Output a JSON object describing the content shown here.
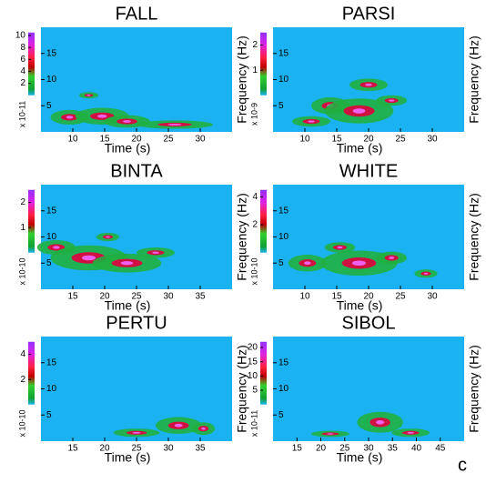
{
  "figure_label": "c",
  "chart_data": [
    {
      "type": "spectrogram",
      "title": "FALL",
      "xlabel": "Time (s)",
      "ylabel": "Frequency (Hz)",
      "xlim": [
        5,
        35
      ],
      "xticks": [
        10,
        15,
        20,
        25,
        30
      ],
      "ylim": [
        0,
        20
      ],
      "yticks": [
        5,
        10,
        15
      ],
      "colorbar": {
        "lim": [
          0,
          10.5
        ],
        "ticks": [
          2,
          4,
          6,
          8,
          10
        ],
        "label": "x 10-11"
      }
    },
    {
      "type": "spectrogram",
      "title": "PARSI",
      "xlabel": "Time (s)",
      "ylabel": "Frequency (Hz)",
      "xlim": [
        5,
        35
      ],
      "xticks": [
        10,
        15,
        20,
        25,
        30
      ],
      "ylim": [
        0,
        20
      ],
      "yticks": [
        5,
        10,
        15
      ],
      "colorbar": {
        "lim": [
          0,
          2.5
        ],
        "ticks": [
          1,
          2
        ],
        "label": "x 10-9"
      }
    },
    {
      "type": "spectrogram",
      "title": "BINTA",
      "xlabel": "Time (s)",
      "ylabel": "Frequency (Hz)",
      "xlim": [
        10,
        40
      ],
      "xticks": [
        15,
        20,
        25,
        30,
        35
      ],
      "ylim": [
        0,
        20
      ],
      "yticks": [
        5,
        10,
        15
      ],
      "colorbar": {
        "lim": [
          0,
          2.5
        ],
        "ticks": [
          1,
          2
        ],
        "label": "x 10-10"
      }
    },
    {
      "type": "spectrogram",
      "title": "WHITE",
      "xlabel": "Time (s)",
      "ylabel": "Frequency (Hz)",
      "xlim": [
        5,
        35
      ],
      "xticks": [
        10,
        15,
        20,
        25,
        30
      ],
      "ylim": [
        0,
        20
      ],
      "yticks": [
        5,
        10,
        15
      ],
      "colorbar": {
        "lim": [
          0,
          4.5
        ],
        "ticks": [
          2,
          4
        ],
        "label": "x 10-10"
      }
    },
    {
      "type": "spectrogram",
      "title": "PERTU",
      "xlabel": "Time (s)",
      "ylabel": "Frequency (Hz)",
      "xlim": [
        10,
        40
      ],
      "xticks": [
        15,
        20,
        25,
        30,
        35
      ],
      "ylim": [
        0,
        20
      ],
      "yticks": [
        5,
        10,
        15
      ],
      "colorbar": {
        "lim": [
          0,
          5
        ],
        "ticks": [
          2,
          4
        ],
        "label": "x 10-10"
      }
    },
    {
      "type": "spectrogram",
      "title": "SIBOL",
      "xlabel": "Time (s)",
      "ylabel": "Frequency (Hz)",
      "xlim": [
        10,
        50
      ],
      "xticks": [
        15,
        20,
        25,
        30,
        35,
        40,
        45
      ],
      "ylim": [
        0,
        20
      ],
      "yticks": [
        5,
        10,
        15
      ],
      "colorbar": {
        "lim": [
          0,
          22
        ],
        "ticks": [
          5,
          10,
          15,
          20
        ],
        "label": "x 10-11"
      }
    }
  ]
}
